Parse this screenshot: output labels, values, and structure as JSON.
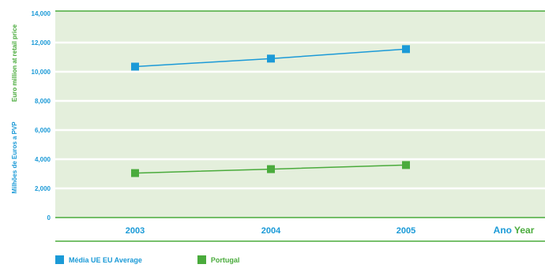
{
  "chart_data": {
    "type": "line",
    "categories": [
      "2003",
      "2004",
      "2005"
    ],
    "series": [
      {
        "name": "Média UE EU Average",
        "values": [
          10350,
          10900,
          11550
        ],
        "color": "#1b9ad7"
      },
      {
        "name": "Portugal",
        "values": [
          3050,
          3320,
          3600
        ],
        "color": "#4aab3c"
      }
    ],
    "ylim": [
      0,
      14000
    ],
    "yticks": [
      "0",
      "2,000",
      "4,000",
      "6,000",
      "8,000",
      "10,000",
      "12,000",
      "14,000"
    ],
    "ytick_values": [
      0,
      2000,
      4000,
      6000,
      8000,
      10000,
      12000,
      14000
    ],
    "ylabel_pt": "Milhões de Euros a PVP",
    "ylabel_en": "Euro million at retail price",
    "xlabel_pt": "Ano",
    "xlabel_en": "Year",
    "grid": true,
    "legend_position": "bottom-left",
    "colors": {
      "background": "#e4efdc",
      "axis": "#4aab3c",
      "grid": "#ffffff",
      "tick_text": "#1b9ad7",
      "label_green": "#4aab3c"
    }
  }
}
